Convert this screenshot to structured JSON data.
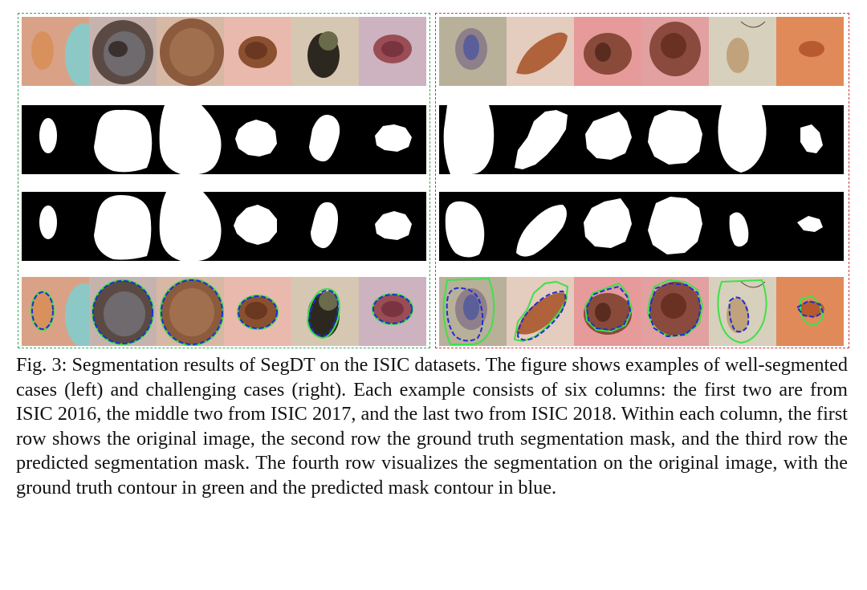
{
  "figure": {
    "panels": [
      {
        "id": "left",
        "border_color": "#3aa35a"
      },
      {
        "id": "right",
        "border_color": "#d03a3a"
      }
    ],
    "caption": {
      "label": "Fig. 3:",
      "text": "Segmentation results of SegDT on the ISIC datasets. The figure shows examples of well-segmented cases (left) and challenging cases (right). Each example consists of six columns: the first two are from ISIC 2016, the middle two from ISIC 2017, and the last two from ISIC 2018. Within each column, the first row shows the original image, the second row the ground truth segmentation mask, and the third row the predicted segmentation mask. The fourth row visualizes the segmentation on the original image, with the ground truth contour in green and the predicted mask contour in blue."
    },
    "colors": {
      "ground_truth_contour": "#3fe04a",
      "predicted_contour": "#1c2fd0"
    }
  }
}
